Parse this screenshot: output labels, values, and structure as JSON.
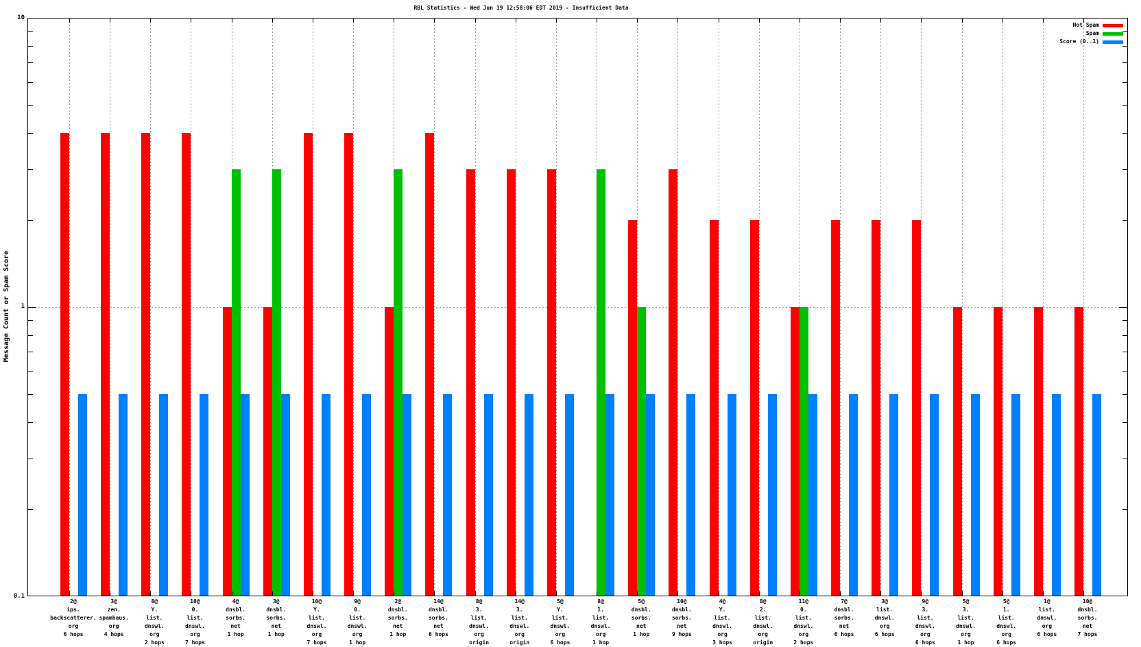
{
  "title": "RBL Statistics - Wed Jun 19 12:58:06 EDT 2019 - Insufficient Data",
  "y_axis": {
    "label": "Message Count or Spam Score",
    "ticks": [
      "10",
      "1",
      "0.1"
    ]
  },
  "legend": [
    {
      "label": "Not Spam",
      "color": "#ff0000"
    },
    {
      "label": "Spam",
      "color": "#00c000"
    },
    {
      "label": "Score (0..1)",
      "color": "#0080ff"
    }
  ],
  "colors": {
    "not_spam": "#ff0000",
    "spam": "#00c000",
    "score": "#0080ff",
    "grid": "#999999"
  },
  "chart_data": {
    "type": "bar",
    "yscale": "log",
    "ylim": [
      0.1,
      10
    ],
    "ylabel": "Message Count or Spam Score",
    "xlabel": "",
    "grid": {
      "vertical_per_category": true,
      "horizontal_at": [
        1
      ]
    },
    "legend_position": "top-right",
    "categories": [
      [
        "2@",
        "ips.",
        "backscatterer.",
        "org",
        "6 hops"
      ],
      [
        "3@",
        "zen.",
        "spamhaus.",
        "org",
        "4 hops"
      ],
      [
        "8@",
        "Y.",
        "list.",
        "dnswl.",
        "org",
        "2 hops"
      ],
      [
        "10@",
        "0.",
        "list.",
        "dnswl.",
        "org",
        "7 hops"
      ],
      [
        "4@",
        "dnsbl.",
        "sorbs.",
        "net",
        "1 hop"
      ],
      [
        "3@",
        "dnsbl.",
        "sorbs.",
        "net",
        "1 hop"
      ],
      [
        "10@",
        "Y.",
        "list.",
        "dnswl.",
        "org",
        "7 hops"
      ],
      [
        "9@",
        "0.",
        "list.",
        "dnswl.",
        "org",
        "1 hop"
      ],
      [
        "2@",
        "dnsbl.",
        "sorbs.",
        "net",
        "1 hop"
      ],
      [
        "14@",
        "dnsbl.",
        "sorbs.",
        "net",
        "6 hops"
      ],
      [
        "8@",
        "3.",
        "list.",
        "dnswl.",
        "org",
        "origin"
      ],
      [
        "14@",
        "3.",
        "list.",
        "dnswl.",
        "org",
        "origin"
      ],
      [
        "5@",
        "Y.",
        "list.",
        "dnswl.",
        "org",
        "6 hops"
      ],
      [
        "8@",
        "1.",
        "list.",
        "dnswl.",
        "org",
        "1 hop"
      ],
      [
        "5@",
        "dnsbl.",
        "sorbs.",
        "net",
        "1 hop"
      ],
      [
        "10@",
        "dnsbl.",
        "sorbs.",
        "net",
        "9 hops"
      ],
      [
        "4@",
        "Y.",
        "list.",
        "dnswl.",
        "org",
        "3 hops"
      ],
      [
        "8@",
        "2.",
        "list.",
        "dnswl.",
        "org",
        "origin"
      ],
      [
        "11@",
        "0.",
        "list.",
        "dnswl.",
        "org",
        "2 hops"
      ],
      [
        "7@",
        "dnsbl.",
        "sorbs.",
        "net",
        "6 hops"
      ],
      [
        "3@",
        "list.",
        "dnswl.",
        "org",
        "6 hops"
      ],
      [
        "9@",
        "3.",
        "list.",
        "dnswl.",
        "org",
        "6 hops"
      ],
      [
        "5@",
        "3.",
        "list.",
        "dnswl.",
        "org",
        "1 hop"
      ],
      [
        "5@",
        "1.",
        "list.",
        "dnswl.",
        "org",
        "6 hops"
      ],
      [
        "1@",
        "list.",
        "dnswl.",
        "org",
        "6 hops"
      ],
      [
        "10@",
        "dnsbl.",
        "sorbs.",
        "net",
        "7 hops"
      ]
    ],
    "series": [
      {
        "name": "Not Spam",
        "color": "#ff0000",
        "values": [
          4,
          4,
          4,
          4,
          1,
          1,
          4,
          4,
          1,
          4,
          3,
          3,
          3,
          0,
          2,
          3,
          2,
          2,
          1,
          2,
          2,
          2,
          1,
          1,
          1,
          1
        ]
      },
      {
        "name": "Spam",
        "color": "#00c000",
        "values": [
          0,
          0,
          0,
          0,
          3,
          3,
          0,
          0,
          3,
          0,
          0,
          0,
          0,
          3,
          1,
          0,
          0,
          0,
          1,
          0,
          0,
          0,
          0,
          0,
          0,
          0
        ]
      },
      {
        "name": "Score (0..1)",
        "color": "#0080ff",
        "values": [
          0.5,
          0.5,
          0.5,
          0.5,
          0.5,
          0.5,
          0.5,
          0.5,
          0.5,
          0.5,
          0.5,
          0.5,
          0.5,
          0.5,
          0.5,
          0.5,
          0.5,
          0.5,
          0.5,
          0.5,
          0.5,
          0.5,
          0.5,
          0.5,
          0.5,
          0.5
        ]
      }
    ]
  }
}
